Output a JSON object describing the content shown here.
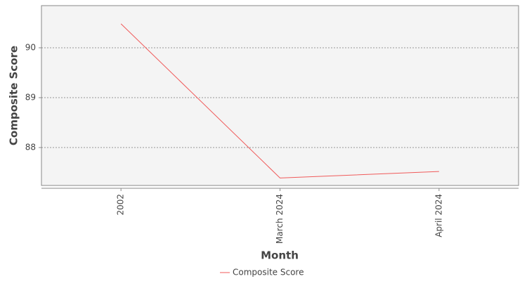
{
  "chart_data": {
    "type": "line",
    "x_label": "Month",
    "y_label": "Composite Score",
    "categories": [
      "2002",
      "March 2024",
      "April 2024"
    ],
    "series": [
      {
        "name": "Composite Score",
        "color": "#f05a5a",
        "values": [
          90.48,
          87.39,
          87.52
        ]
      }
    ],
    "ylim": [
      87.24,
      90.845
    ],
    "yticks": [
      88,
      89,
      90
    ],
    "grid": true,
    "legend": "bottom"
  }
}
